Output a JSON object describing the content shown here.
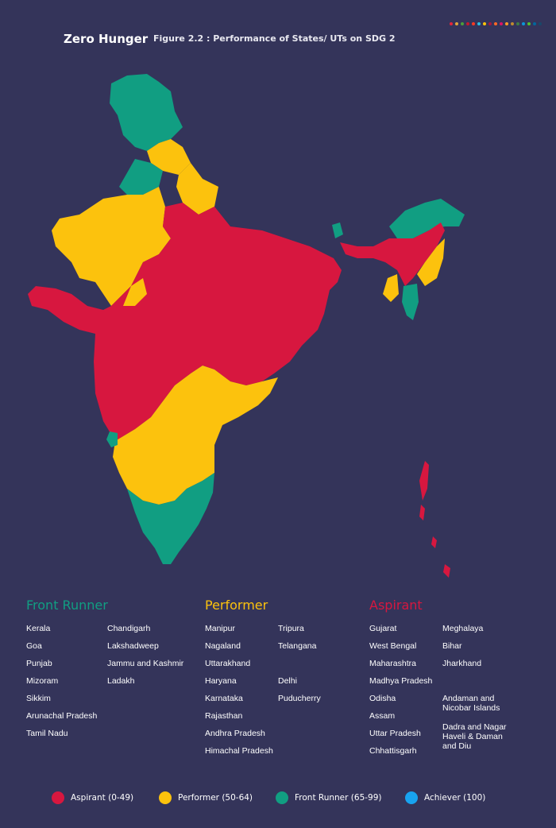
{
  "header": {
    "title": "Zero Hunger",
    "figure_caption": "Figure 2.2 : Performance of States/ UTs on SDG 2"
  },
  "colors": {
    "background": "#34345a",
    "aspirant": "#d7173f",
    "performer": "#fcc20d",
    "front_runner": "#119e82",
    "achiever": "#18a3f0"
  },
  "categories": {
    "front_runner": {
      "heading": "Front Runner",
      "col1": [
        "Kerala",
        "Goa",
        "Punjab",
        "Mizoram",
        "Sikkim",
        "Arunachal Pradesh",
        "Tamil Nadu"
      ],
      "col2": [
        "Chandigarh",
        "Lakshadweep",
        "Jammu and Kashmir",
        "Ladakh"
      ]
    },
    "performer": {
      "heading": "Performer",
      "col1": [
        "Manipur",
        "Nagaland",
        "Uttarakhand",
        "Haryana",
        "Karnataka",
        "Rajasthan",
        "Andhra Pradesh",
        "Himachal Pradesh"
      ],
      "col2": [
        "Tripura",
        "Telangana",
        "",
        "Delhi",
        "Puducherry"
      ]
    },
    "aspirant": {
      "heading": "Aspirant",
      "col1": [
        "Gujarat",
        "West Bengal",
        "Maharashtra",
        "Madhya Pradesh",
        "Odisha",
        "Assam",
        "Uttar Pradesh",
        "Chhattisgarh"
      ],
      "col2": [
        "Meghalaya",
        "Bihar",
        "Jharkhand",
        "",
        "Andaman and Nicobar Islands",
        "Dadra and Nagar Haveli & Daman and Diu"
      ]
    }
  },
  "key": [
    {
      "label": "Aspirant (0-49)",
      "color_key": "aspirant"
    },
    {
      "label": "Performer (50-64)",
      "color_key": "performer"
    },
    {
      "label": "Front Runner (65-99)",
      "color_key": "front_runner"
    },
    {
      "label": "Achiever (100)",
      "color_key": "achiever"
    }
  ],
  "decor_dots": [
    "#e5243b",
    "#dda63a",
    "#4c9f38",
    "#c5192d",
    "#ff3a21",
    "#26bde2",
    "#fcc30b",
    "#a21942",
    "#fd6925",
    "#dd1367",
    "#fd9d24",
    "#bf8b2e",
    "#3f7e44",
    "#0a97d9",
    "#56c02b",
    "#00689d",
    "#19486a"
  ]
}
